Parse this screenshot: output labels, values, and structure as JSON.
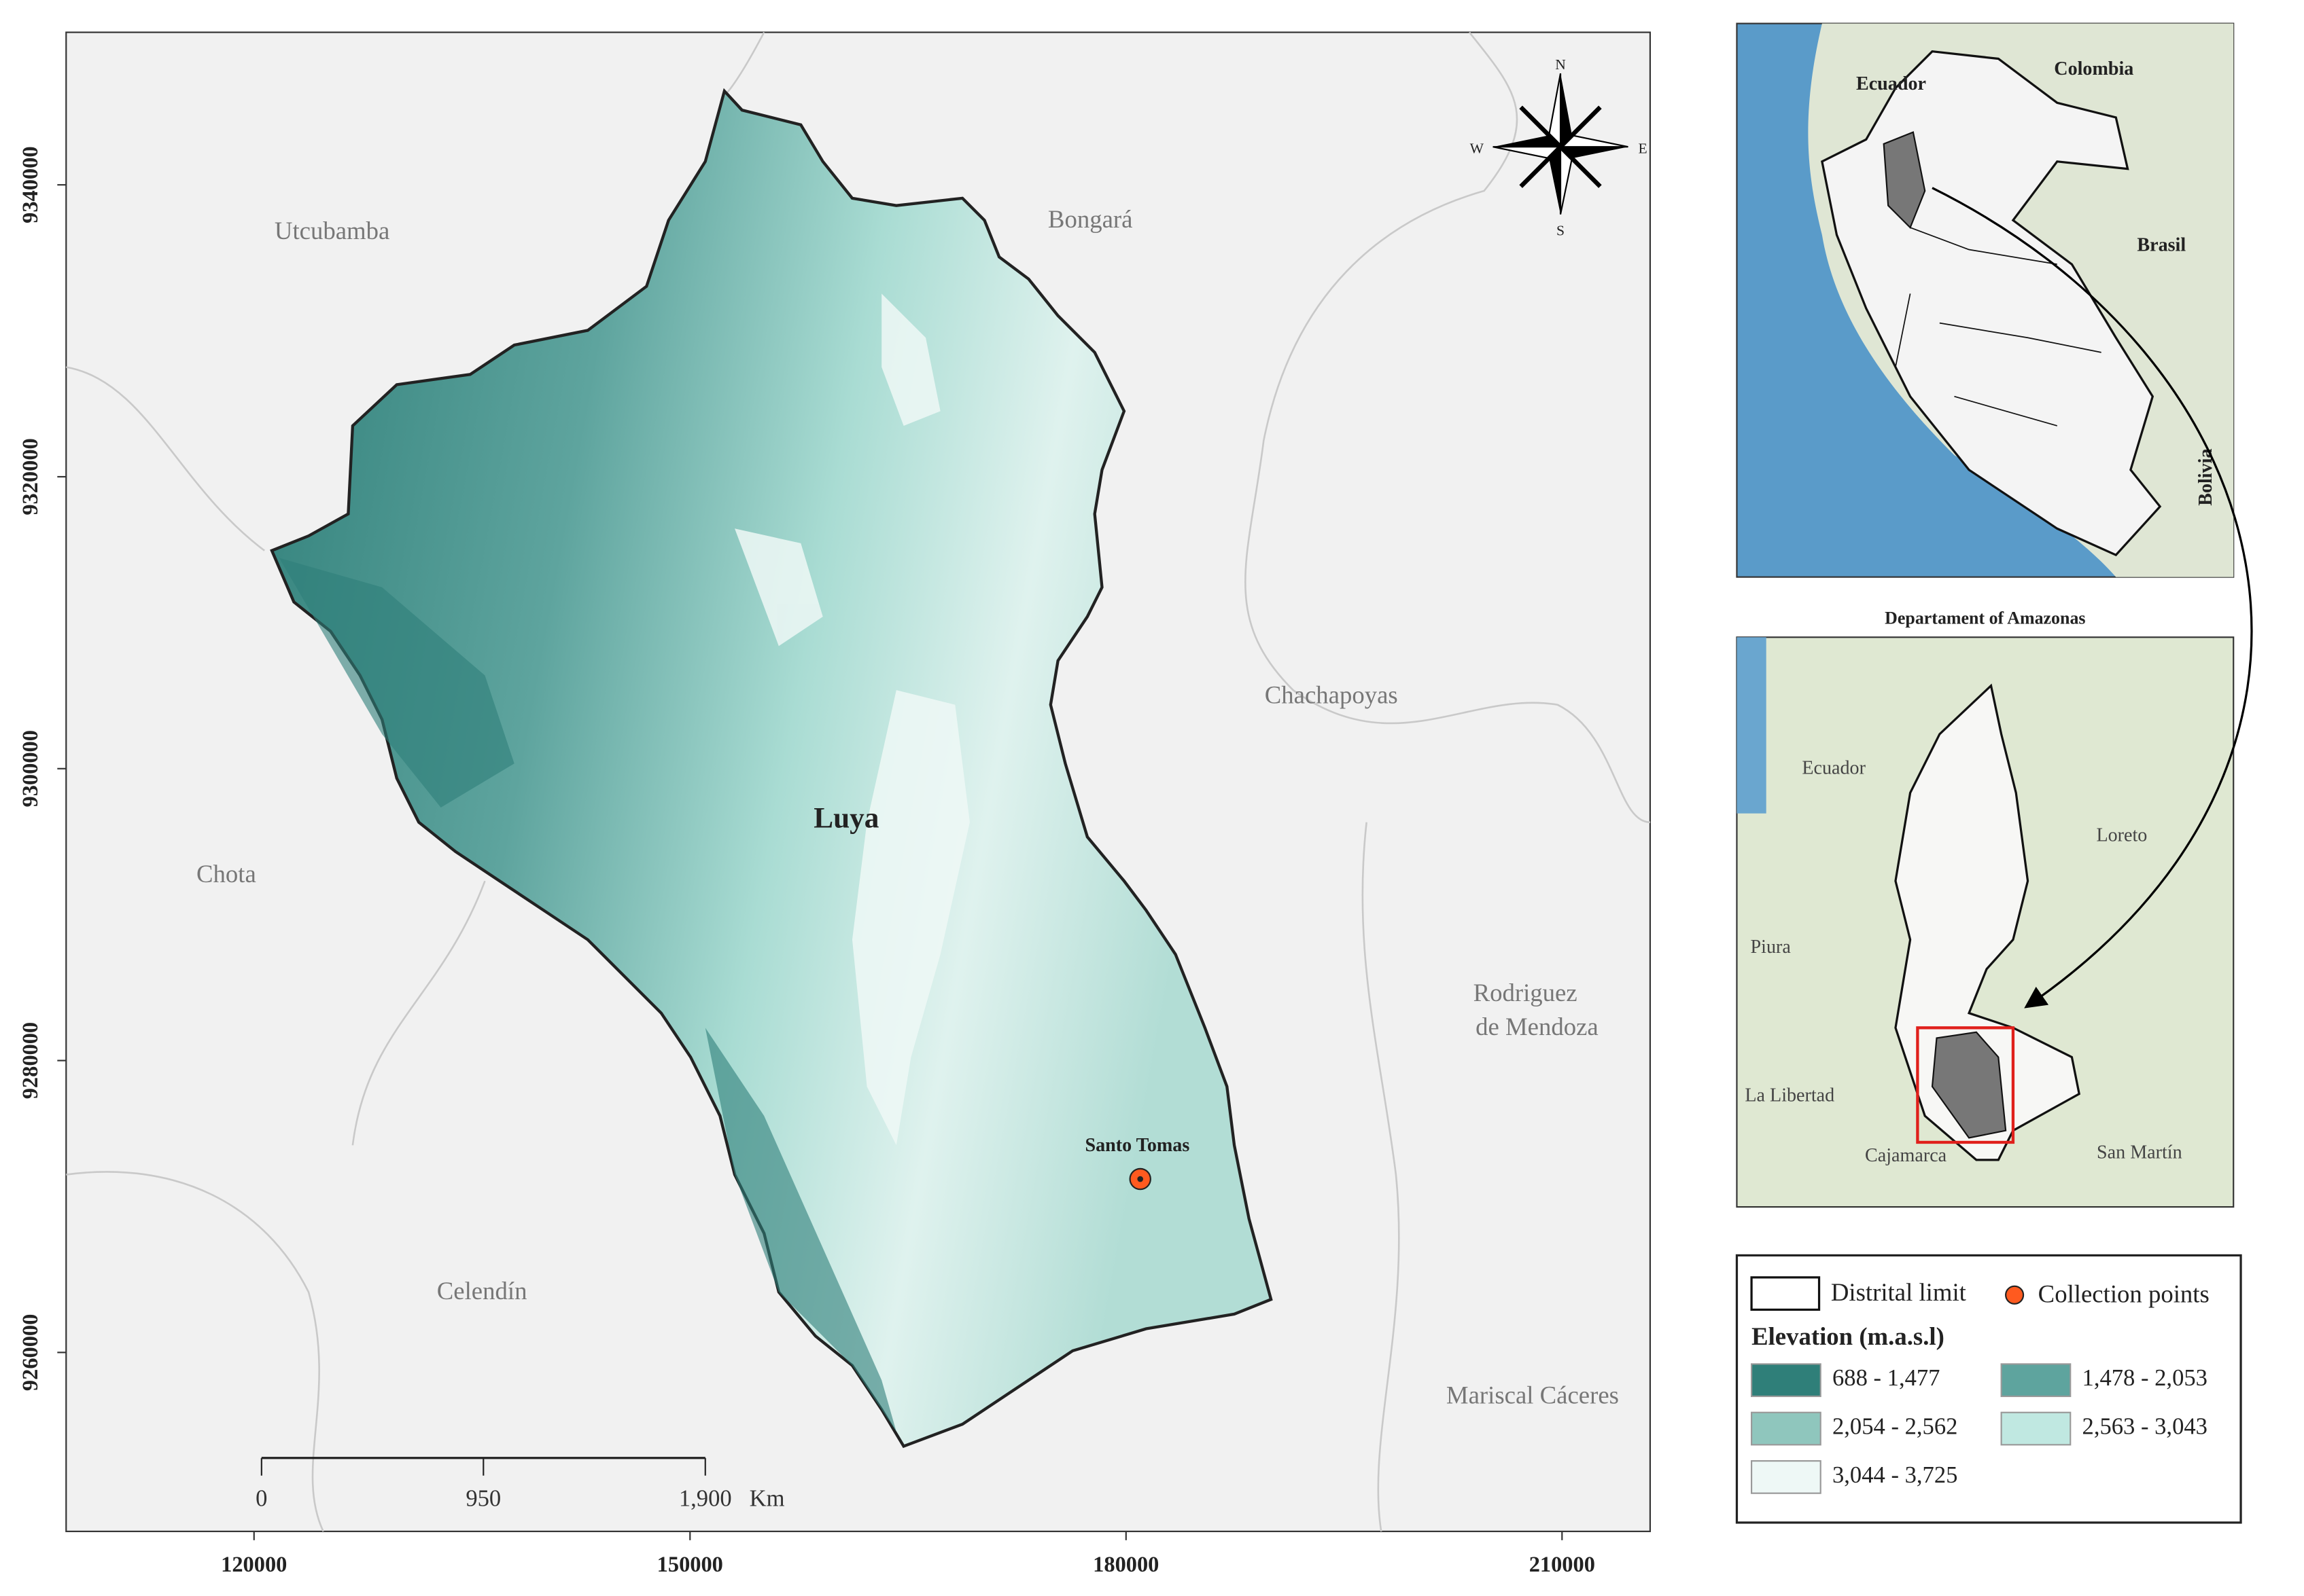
{
  "map": {
    "xlim": [
      107071,
      216061
    ],
    "ylim": [
      9247739,
      9350452
    ],
    "xticks": [
      120000,
      150000,
      180000,
      210000
    ],
    "yticks": [
      9260000,
      9280000,
      9300000,
      9320000,
      9340000
    ],
    "places": [
      "Utcubamba",
      "Bongará",
      "Chachapoyas",
      "Chota",
      "Rodriguez",
      "de Mendoza",
      "Celendín",
      "Mariscal Cáceres"
    ],
    "district": "Luya",
    "point": "Santo Tomas",
    "compass": [
      "N",
      "S",
      "E",
      "W"
    ],
    "scale": {
      "ticks": [
        0,
        950,
        {
          "value": 1900,
          "label": "1,900"
        }
      ],
      "unit": "Km"
    }
  },
  "inset_country": {
    "labels": [
      "Ecuador",
      "Colombia",
      "Brasil",
      "Bolivia"
    ]
  },
  "inset_department": {
    "title": "Departament of Amazonas",
    "labels": [
      "Ecuador",
      "Loreto",
      "Piura",
      "La Libertad",
      "Cajamarca",
      "San Martín"
    ]
  },
  "legend": {
    "boundary": "Distrital limit",
    "points": "Collection points",
    "title": "Elevation (m.a.s.l)",
    "classes": [
      {
        "label": "688 - 1,477",
        "color": "#2f7f79"
      },
      {
        "label": "1,478 - 2,053",
        "color": "#5ea49e"
      },
      {
        "label": "2,054 - 2,562",
        "color": "#8fc6bd"
      },
      {
        "label": "2,563 - 3,043",
        "color": "#c0e8e1"
      },
      {
        "label": "3,044 - 3,725",
        "color": "#eef8f6"
      }
    ]
  }
}
